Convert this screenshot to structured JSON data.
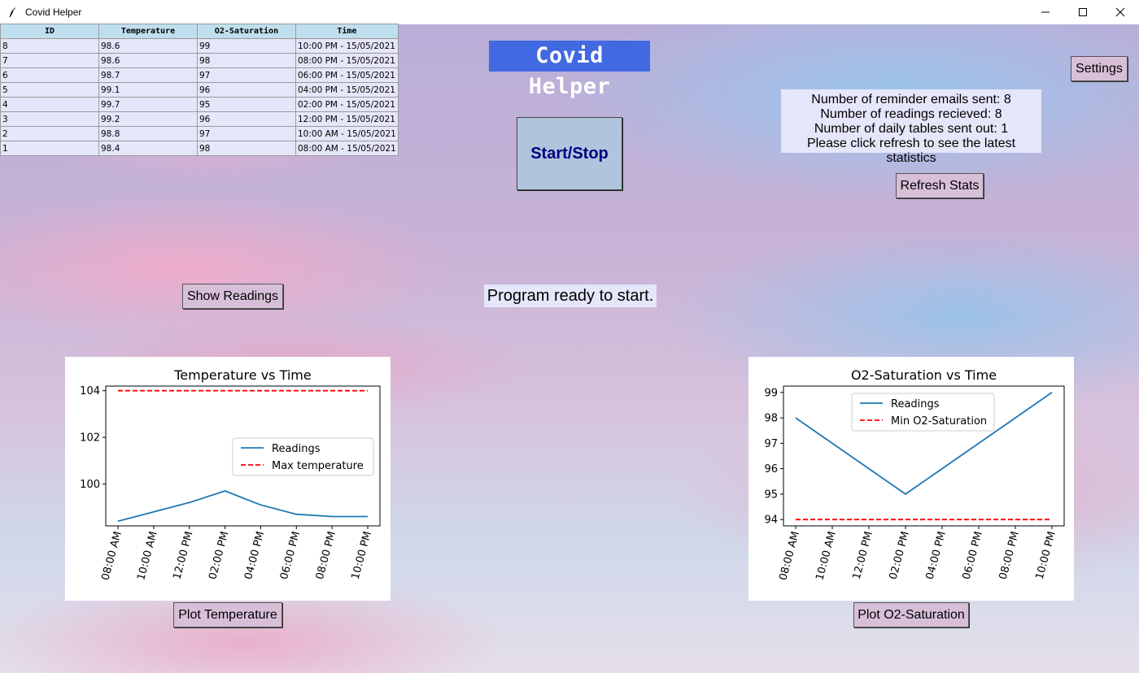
{
  "window": {
    "title": "Covid Helper"
  },
  "table": {
    "columns": [
      "ID",
      "Temperature",
      "O2-Saturation",
      "Time"
    ],
    "rows": [
      [
        "8",
        "98.6",
        "99",
        "10:00 PM - 15/05/2021"
      ],
      [
        "7",
        "98.6",
        "98",
        "08:00 PM - 15/05/2021"
      ],
      [
        "6",
        "98.7",
        "97",
        "06:00 PM - 15/05/2021"
      ],
      [
        "5",
        "99.1",
        "96",
        "04:00 PM - 15/05/2021"
      ],
      [
        "4",
        "99.7",
        "95",
        "02:00 PM - 15/05/2021"
      ],
      [
        "3",
        "99.2",
        "96",
        "12:00 PM - 15/05/2021"
      ],
      [
        "2",
        "98.8",
        "97",
        "10:00 AM - 15/05/2021"
      ],
      [
        "1",
        "98.4",
        "98",
        "08:00 AM - 15/05/2021"
      ]
    ]
  },
  "header": {
    "app_title": "Covid Helper"
  },
  "buttons": {
    "settings": "Settings",
    "start_stop": "Start/Stop",
    "refresh_stats": "Refresh Stats",
    "show_readings": "Show Readings",
    "plot_temperature": "Plot Temperature",
    "plot_o2": "Plot O2-Saturation"
  },
  "stats": {
    "line1": "Number of reminder emails sent: 8",
    "line2": "Number of readings recieved: 8",
    "line3": "Number of daily tables sent out: 1",
    "line4": "Please click refresh to see the latest statistics"
  },
  "status": {
    "text": "Program ready to start."
  },
  "colors": {
    "title_bg": "#4169e1",
    "button_bg": "#d8bfd8",
    "start_bg": "#b0c4de",
    "start_text": "#000080",
    "panel_bg": "#e6e6fa",
    "table_header_bg": "#bfdfee",
    "readings_line": "#1f77b4",
    "limit_line": "#ff0000"
  },
  "chart_data": [
    {
      "type": "line",
      "title": "Temperature vs Time",
      "x": [
        "08:00 AM",
        "10:00 AM",
        "12:00 PM",
        "02:00 PM",
        "04:00 PM",
        "06:00 PM",
        "08:00 PM",
        "10:00 PM"
      ],
      "series": [
        {
          "name": "Readings",
          "values": [
            98.4,
            98.8,
            99.2,
            99.7,
            99.1,
            98.7,
            98.6,
            98.6
          ],
          "style": "solid",
          "color": "#1f77b4"
        },
        {
          "name": "Max temperature",
          "values": [
            104,
            104,
            104,
            104,
            104,
            104,
            104,
            104
          ],
          "style": "dashed",
          "color": "#ff0000"
        }
      ],
      "yticks": [
        100,
        102,
        104
      ],
      "ylim": [
        98.2,
        104.2
      ],
      "legend": "center-right"
    },
    {
      "type": "line",
      "title": "O2-Saturation vs Time",
      "x": [
        "08:00 AM",
        "10:00 AM",
        "12:00 PM",
        "02:00 PM",
        "04:00 PM",
        "06:00 PM",
        "08:00 PM",
        "10:00 PM"
      ],
      "series": [
        {
          "name": "Readings",
          "values": [
            98,
            97,
            96,
            95,
            96,
            97,
            98,
            99
          ],
          "style": "solid",
          "color": "#1f77b4"
        },
        {
          "name": "Min O2-Saturation",
          "values": [
            94,
            94,
            94,
            94,
            94,
            94,
            94,
            94
          ],
          "style": "dashed",
          "color": "#ff0000"
        }
      ],
      "yticks": [
        94,
        95,
        96,
        97,
        98,
        99
      ],
      "ylim": [
        93.75,
        99.25
      ],
      "legend": "upper-center"
    }
  ]
}
